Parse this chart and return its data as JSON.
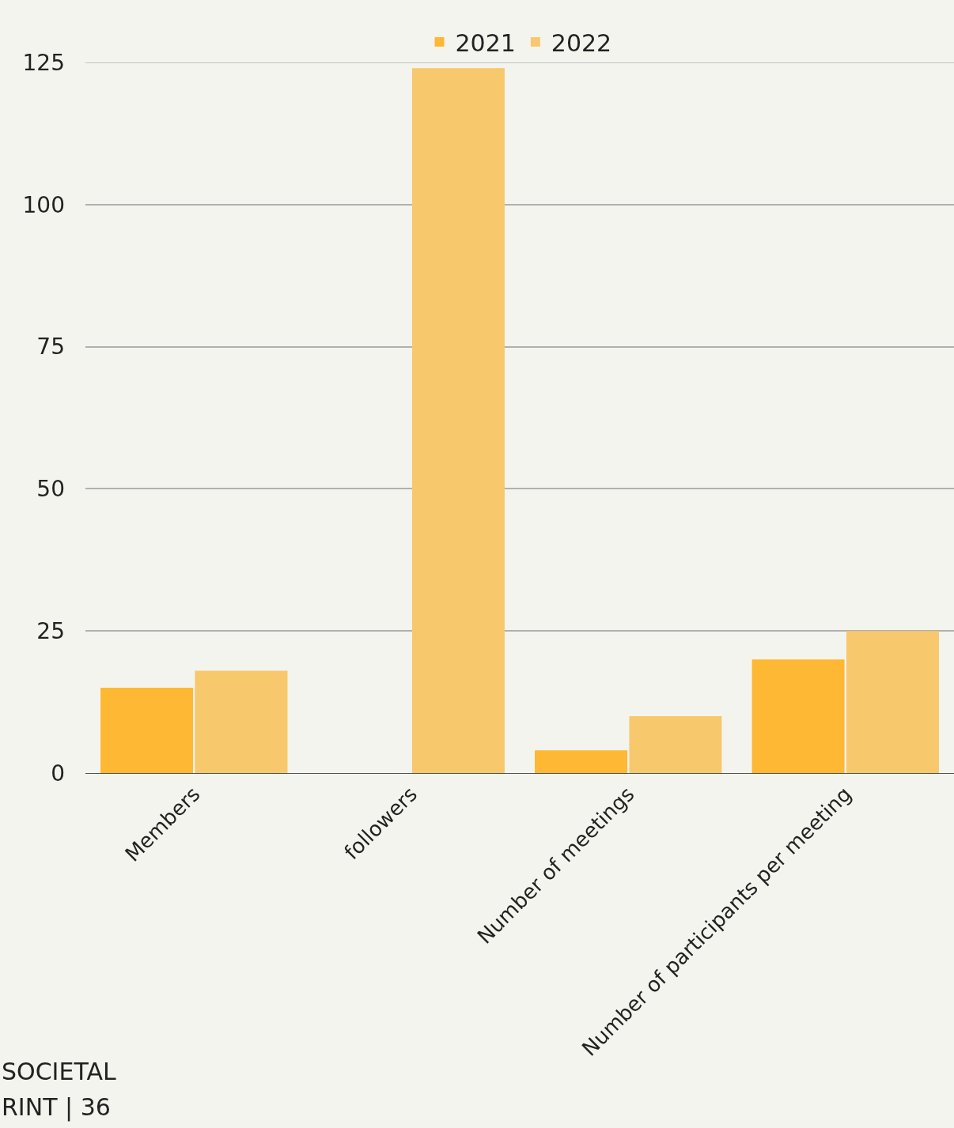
{
  "chart_data": {
    "type": "bar",
    "categories": [
      "Members",
      "followers",
      "Number of meetings",
      "Number of participants per meeting"
    ],
    "series": [
      {
        "name": "2021",
        "color": "#ffb833",
        "values": [
          15,
          null,
          4,
          20
        ]
      },
      {
        "name": "2022",
        "color": "#f8c86c",
        "values": [
          18,
          124,
          10,
          25
        ]
      }
    ],
    "ylim": [
      0,
      125
    ],
    "yticks": [
      0,
      25,
      50,
      75,
      100,
      125
    ],
    "grid": "y",
    "legend": "top",
    "annotations": [
      "SOCIETAL",
      "RINT | 36"
    ]
  }
}
